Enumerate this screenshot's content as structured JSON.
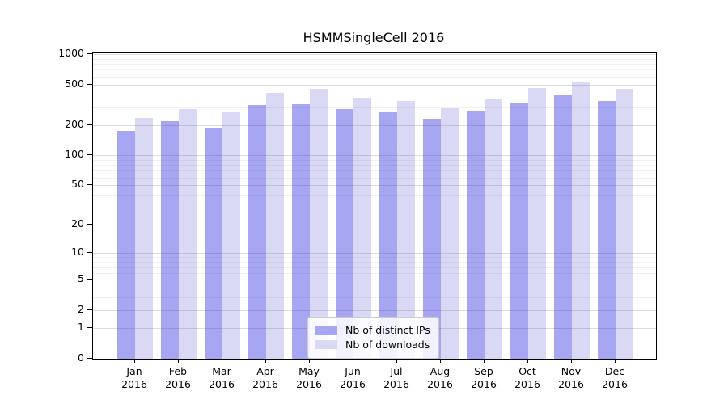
{
  "title": "HSMMSingleCell 2016",
  "colors": {
    "ips_bar": "#a6a6f3",
    "downloads_bar": "#d9d9f6",
    "axis": "#000000",
    "grid_major": "rgba(60,60,60,0.18)",
    "grid_minor": "rgba(60,60,60,0.07)",
    "legend_border": "#cccccc"
  },
  "legend": {
    "items": [
      {
        "label": "Nb of distinct IPs",
        "swatch": "ips_bar"
      },
      {
        "label": "Nb of downloads",
        "swatch": "downloads_bar"
      }
    ]
  },
  "chart_data": {
    "type": "bar",
    "title": "HSMMSingleCell 2016",
    "categories": [
      "Jan 2016",
      "Feb 2016",
      "Mar 2016",
      "Apr 2016",
      "May 2016",
      "Jun 2016",
      "Jul 2016",
      "Aug 2016",
      "Sep 2016",
      "Oct 2016",
      "Nov 2016",
      "Dec 2016"
    ],
    "x_months": [
      "Jan",
      "Feb",
      "Mar",
      "Apr",
      "May",
      "Jun",
      "Jul",
      "Aug",
      "Sep",
      "Oct",
      "Nov",
      "Dec"
    ],
    "x_year": "2016",
    "series": [
      {
        "name": "Nb of distinct IPs",
        "values": [
          175,
          217,
          187,
          313,
          323,
          285,
          268,
          230,
          278,
          332,
          395,
          344
        ]
      },
      {
        "name": "Nb of downloads",
        "values": [
          235,
          287,
          265,
          418,
          455,
          371,
          343,
          291,
          366,
          460,
          525,
          452
        ]
      }
    ],
    "yscale": "log1p",
    "ylim": [
      0,
      1000
    ],
    "yticks_major": [
      0,
      1,
      2,
      5,
      10,
      20,
      50,
      100,
      200,
      500,
      1000
    ],
    "yticks_minor": [
      3,
      4,
      6,
      7,
      8,
      9,
      30,
      40,
      60,
      70,
      80,
      90,
      300,
      400,
      600,
      700,
      800,
      900
    ],
    "grid": true,
    "legend_position": "lower center"
  }
}
